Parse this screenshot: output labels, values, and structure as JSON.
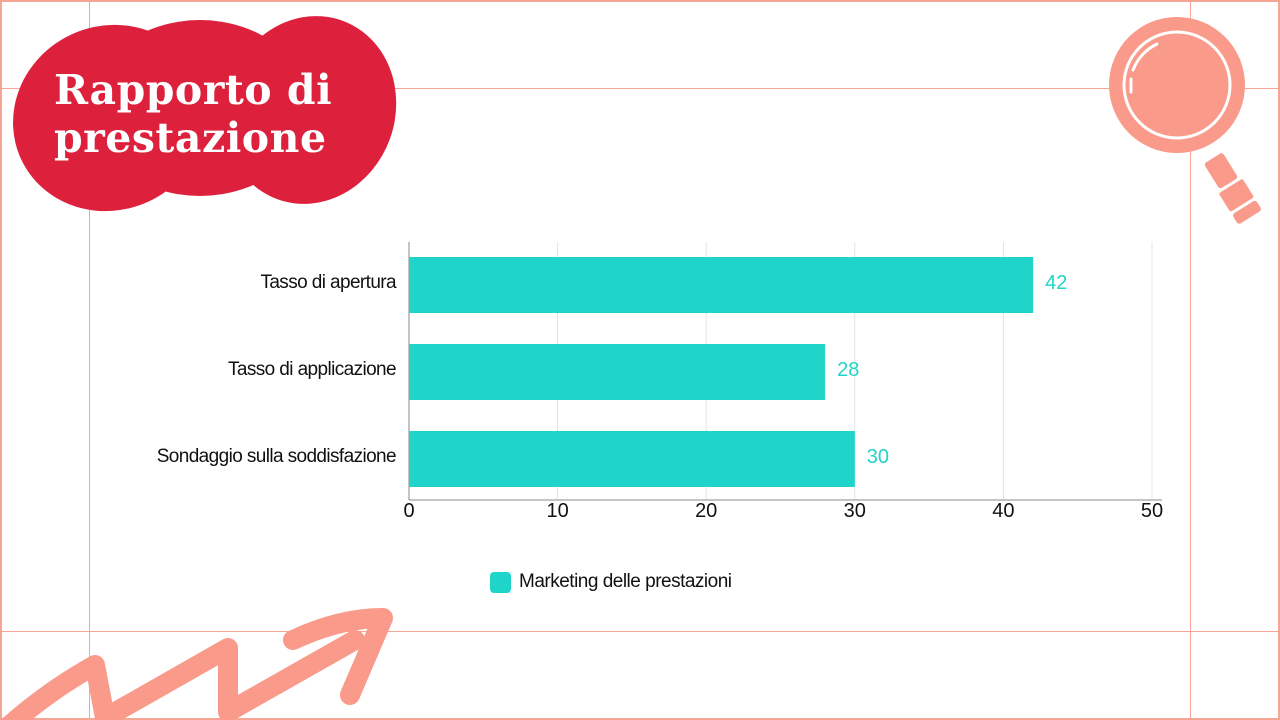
{
  "title": {
    "line1": "Rapporto di",
    "line2": "prestazione"
  },
  "colors": {
    "bar": "#1fd5c9",
    "blob": "#dd213c",
    "decor": "#f99a8a",
    "grid": "#f6a493"
  },
  "decor": {
    "magnifier": "magnifier-icon",
    "arrow": "zigzag-arrow-icon"
  },
  "chart_data": {
    "type": "bar",
    "orientation": "horizontal",
    "categories": [
      "Tasso di apertura",
      "Tasso di applicazione",
      "Sondaggio sulla soddisfazione"
    ],
    "series": [
      {
        "name": "Marketing delle prestazioni",
        "values": [
          42,
          28,
          30
        ]
      }
    ],
    "data_labels": [
      "42",
      "28",
      "30"
    ],
    "xlim": [
      0,
      50
    ],
    "xticks": [
      "0",
      "10",
      "20",
      "30",
      "40",
      "50"
    ],
    "grid": true,
    "legend": "bottom"
  }
}
